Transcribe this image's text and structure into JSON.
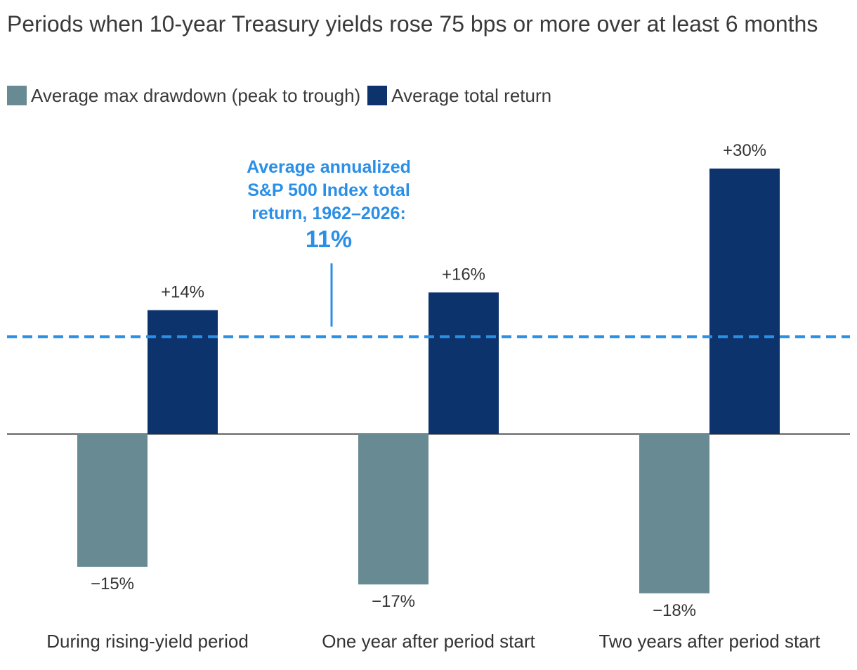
{
  "chart_data": {
    "type": "bar",
    "title": "Periods when 10-year Treasury yields rose 75 bps or more over at least 6 months",
    "categories": [
      "During rising-yield period",
      "One year after period start",
      "Two years after period start"
    ],
    "series": [
      {
        "name": "Average max drawdown (peak to trough)",
        "values": [
          -15,
          -17,
          -18
        ],
        "labels": [
          "−15%",
          "−17%",
          "−18%"
        ],
        "color": "#688a92"
      },
      {
        "name": "Average total return",
        "values": [
          14,
          16,
          30
        ],
        "labels": [
          "+14%",
          "+16%",
          "+30%"
        ],
        "color": "#0c336b"
      }
    ],
    "reference_line": {
      "value": 11,
      "color": "#2b8fe6",
      "annotation_lines": [
        "Average annualized",
        "S&P 500 Index total",
        "return, 1962–2026:"
      ],
      "annotation_value": "11%"
    },
    "ylim": [
      -20,
      33
    ],
    "xlabel": "",
    "ylabel": "",
    "grid": false,
    "legend_position": "top-left"
  }
}
